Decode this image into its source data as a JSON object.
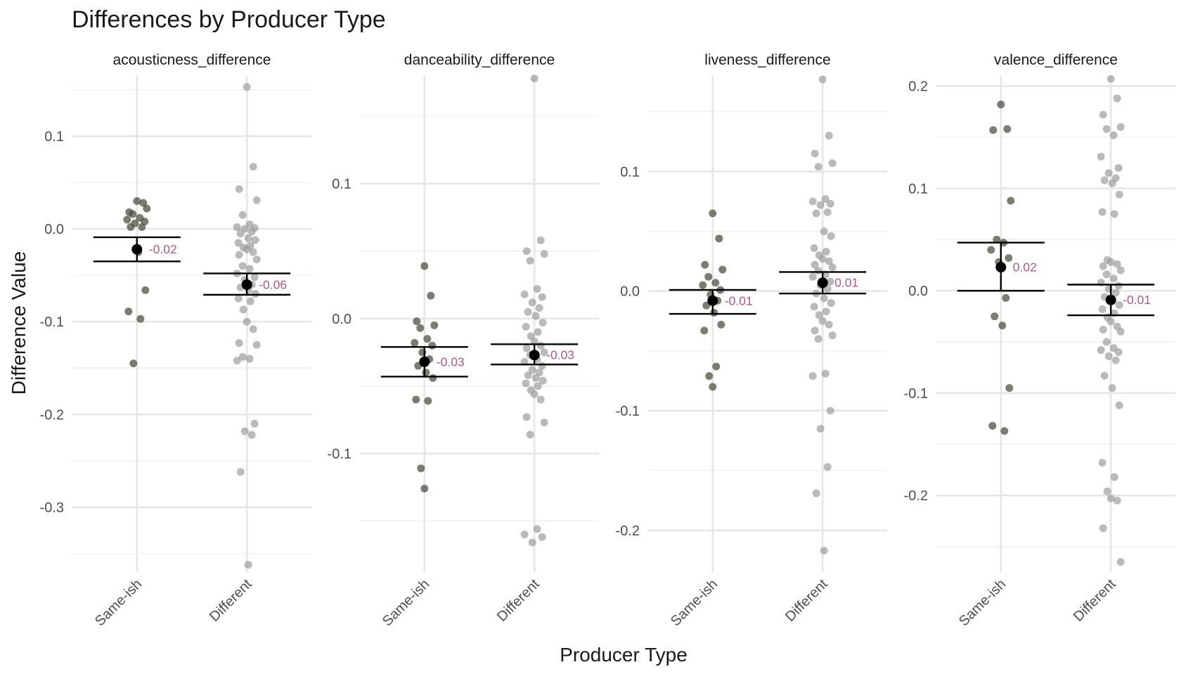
{
  "title": "Differences by Producer Type",
  "xlabel": "Producer Type",
  "ylabel": "Difference Value",
  "colors": {
    "sameish_points": "#4a4a3a",
    "different_points": "#9a9a9a",
    "mean_point": "#000000",
    "label": "#b05a80"
  },
  "chart_data": {
    "type": "scatter",
    "categories": [
      "Same-ish",
      "Different"
    ],
    "panels": [
      {
        "name": "acousticness_difference",
        "ylim": [
          -0.37,
          0.165
        ],
        "yticks": [
          0.1,
          0.0,
          -0.1,
          -0.2,
          -0.3
        ],
        "tick_labels": [
          "0.1",
          "0.0",
          "-0.1",
          "-0.2",
          "-0.3"
        ],
        "groups": [
          {
            "category": "Same-ish",
            "mean": -0.022,
            "ci": [
              -0.035,
              -0.009
            ],
            "label": "-0.02",
            "points": [
              0.03,
              0.028,
              0.018,
              0.022,
              0.016,
              0.012,
              0.01,
              0.008,
              0.006,
              0.002,
              0.002,
              -0.025,
              -0.066,
              -0.089,
              -0.097,
              -0.145
            ]
          },
          {
            "category": "Different",
            "mean": -0.06,
            "ci": [
              -0.071,
              -0.048
            ],
            "label": "-0.06",
            "points": [
              0.153,
              0.067,
              0.043,
              0.031,
              0.015,
              0.005,
              0.002,
              0.001,
              0.0,
              -0.003,
              -0.005,
              -0.01,
              -0.012,
              -0.015,
              -0.018,
              -0.02,
              -0.022,
              -0.025,
              -0.028,
              -0.033,
              -0.04,
              -0.043,
              -0.048,
              -0.052,
              -0.055,
              -0.06,
              -0.063,
              -0.066,
              -0.07,
              -0.075,
              -0.078,
              -0.087,
              -0.1,
              -0.108,
              -0.123,
              -0.125,
              -0.138,
              -0.14,
              -0.142,
              -0.21,
              -0.218,
              -0.222,
              -0.262,
              -0.362
            ]
          }
        ]
      },
      {
        "name": "danceability_difference",
        "ylim": [
          -0.188,
          0.18
        ],
        "yticks": [
          0.1,
          0.0,
          -0.1
        ],
        "tick_labels": [
          "0.1",
          "0.0",
          "-0.1"
        ],
        "groups": [
          {
            "category": "Same-ish",
            "mean": -0.032,
            "ci": [
              -0.043,
              -0.021
            ],
            "label": "-0.03",
            "points": [
              0.039,
              0.017,
              -0.002,
              -0.005,
              -0.007,
              -0.015,
              -0.018,
              -0.02,
              -0.025,
              -0.03,
              -0.035,
              -0.04,
              -0.044,
              -0.06,
              -0.061,
              -0.111,
              -0.126
            ]
          },
          {
            "category": "Different",
            "mean": -0.027,
            "ci": [
              -0.034,
              -0.019
            ],
            "label": "-0.03",
            "points": [
              0.178,
              0.058,
              0.05,
              0.048,
              0.043,
              0.022,
              0.018,
              0.016,
              0.012,
              0.008,
              0.005,
              0.002,
              -0.003,
              -0.006,
              -0.01,
              -0.013,
              -0.017,
              -0.02,
              -0.022,
              -0.025,
              -0.027,
              -0.03,
              -0.032,
              -0.035,
              -0.038,
              -0.04,
              -0.042,
              -0.044,
              -0.046,
              -0.048,
              -0.05,
              -0.053,
              -0.056,
              -0.06,
              -0.073,
              -0.077,
              -0.086,
              -0.156,
              -0.16,
              -0.162,
              -0.166
            ]
          }
        ]
      },
      {
        "name": "liveness_difference",
        "ylim": [
          -0.235,
          0.18
        ],
        "yticks": [
          0.1,
          0.0,
          -0.1,
          -0.2
        ],
        "tick_labels": [
          "0.1",
          "0.0",
          "-0.1",
          "-0.2"
        ],
        "groups": [
          {
            "category": "Same-ish",
            "mean": -0.008,
            "ci": [
              -0.019,
              0.001
            ],
            "label": "-0.01",
            "points": [
              0.065,
              0.044,
              0.022,
              0.018,
              0.012,
              0.007,
              0.005,
              0.001,
              -0.003,
              -0.008,
              -0.012,
              -0.018,
              -0.028,
              -0.033,
              -0.063,
              -0.071,
              -0.08
            ]
          },
          {
            "category": "Different",
            "mean": 0.007,
            "ci": [
              -0.002,
              0.016
            ],
            "label": "0.01",
            "points": [
              0.177,
              0.13,
              0.115,
              0.107,
              0.104,
              0.077,
              0.075,
              0.073,
              0.072,
              0.066,
              0.065,
              0.05,
              0.046,
              0.036,
              0.033,
              0.03,
              0.027,
              0.025,
              0.022,
              0.02,
              0.017,
              0.014,
              0.012,
              0.008,
              0.005,
              0.002,
              -0.002,
              -0.006,
              -0.01,
              -0.013,
              -0.017,
              -0.02,
              -0.025,
              -0.028,
              -0.033,
              -0.037,
              -0.04,
              -0.069,
              -0.071,
              -0.1,
              -0.115,
              -0.147,
              -0.169,
              -0.217
            ]
          }
        ]
      },
      {
        "name": "valence_difference",
        "ylim": [
          -0.275,
          0.21
        ],
        "yticks": [
          0.2,
          0.1,
          0.0,
          -0.1,
          -0.2
        ],
        "tick_labels": [
          "0.2",
          "0.1",
          "0.0",
          "-0.1",
          "-0.2"
        ],
        "groups": [
          {
            "category": "Same-ish",
            "mean": 0.023,
            "ci": [
              0.0,
              0.047
            ],
            "label": "0.02",
            "points": [
              0.182,
              0.158,
              0.157,
              0.088,
              0.05,
              0.047,
              0.04,
              0.032,
              0.028,
              -0.007,
              -0.025,
              -0.034,
              -0.095,
              -0.132,
              -0.137
            ]
          },
          {
            "category": "Different",
            "mean": -0.009,
            "ci": [
              -0.024,
              0.006
            ],
            "label": "-0.01",
            "points": [
              0.207,
              0.188,
              0.172,
              0.16,
              0.158,
              0.152,
              0.131,
              0.12,
              0.115,
              0.11,
              0.108,
              0.105,
              0.094,
              0.077,
              0.075,
              0.03,
              0.028,
              0.026,
              0.024,
              0.02,
              0.016,
              0.012,
              0.008,
              0.005,
              0.002,
              -0.002,
              -0.006,
              -0.01,
              -0.014,
              -0.018,
              -0.022,
              -0.026,
              -0.03,
              -0.035,
              -0.038,
              -0.04,
              -0.05,
              -0.056,
              -0.058,
              -0.06,
              -0.064,
              -0.068,
              -0.083,
              -0.095,
              -0.112,
              -0.168,
              -0.182,
              -0.196,
              -0.203,
              -0.205,
              -0.232,
              -0.265
            ]
          }
        ]
      }
    ]
  }
}
